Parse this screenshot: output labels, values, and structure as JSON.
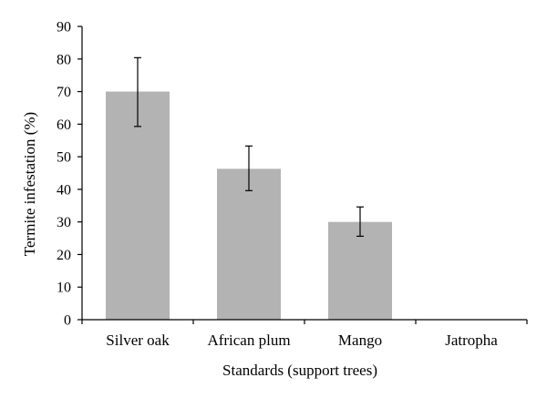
{
  "chart_data": {
    "type": "bar",
    "title": "",
    "xlabel": "Standards (support trees)",
    "ylabel": "Termite infestation (%)",
    "categories": [
      "Silver oak",
      "African plum",
      "Mango",
      "Jatropha"
    ],
    "values": [
      70,
      46.3,
      30,
      0
    ],
    "error_bars": {
      "lower": [
        59.3,
        39.6,
        25.6,
        0
      ],
      "upper": [
        80.4,
        53.3,
        34.6,
        0
      ]
    },
    "ylim": [
      0,
      90
    ],
    "yticks": [
      "0",
      "10",
      "20",
      "30",
      "40",
      "50",
      "60",
      "70",
      "80",
      "90"
    ],
    "grid": false,
    "bar_color": "#b3b3b3",
    "axis_color": "#000000"
  }
}
